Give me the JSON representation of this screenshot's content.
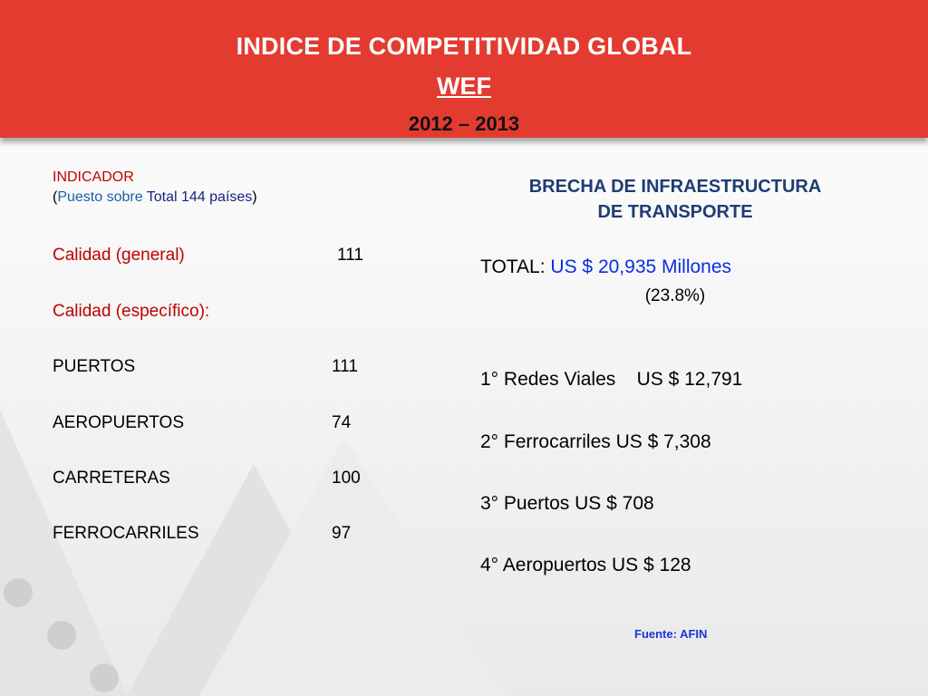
{
  "header": {
    "title": "INDICE DE COMPETITIVIDAD GLOBAL",
    "subtitle": "WEF",
    "years": "2012 – 2013"
  },
  "left": {
    "indicator_title": "INDICADOR",
    "paren_open": "(",
    "subtitle_part1": "Puesto sobre",
    "subtitle_part2": "Total 144 países",
    "paren_close": ")",
    "rows": [
      {
        "label": "Calidad (general)",
        "value": "111"
      },
      {
        "label": "Calidad (específico):",
        "value": ""
      },
      {
        "label": "PUERTOS",
        "value": "111"
      },
      {
        "label": "AEROPUERTOS",
        "value": "74"
      },
      {
        "label": "CARRETERAS",
        "value": "100"
      },
      {
        "label": "FERROCARRILES",
        "value": "97"
      }
    ]
  },
  "right": {
    "brecha_line1": "BRECHA DE INFRAESTRUCTURA",
    "brecha_line2": "DE TRANSPORTE",
    "total_label": "TOTAL:",
    "total_amount": "US $ 20,935 Millones",
    "percentage": "(23.8%)",
    "items": [
      "1° Redes Viales    US $ 12,791",
      "2° Ferrocarriles US $ 7,308",
      "3° Puertos US $ 708",
      "4° Aeropuertos US $ 128"
    ],
    "source": "Fuente: AFIN"
  },
  "colors": {
    "header_red": "#e33b30",
    "label_red": "#c00000",
    "title_blue": "#1f3c73",
    "amount_blue": "#0a2ee0"
  }
}
